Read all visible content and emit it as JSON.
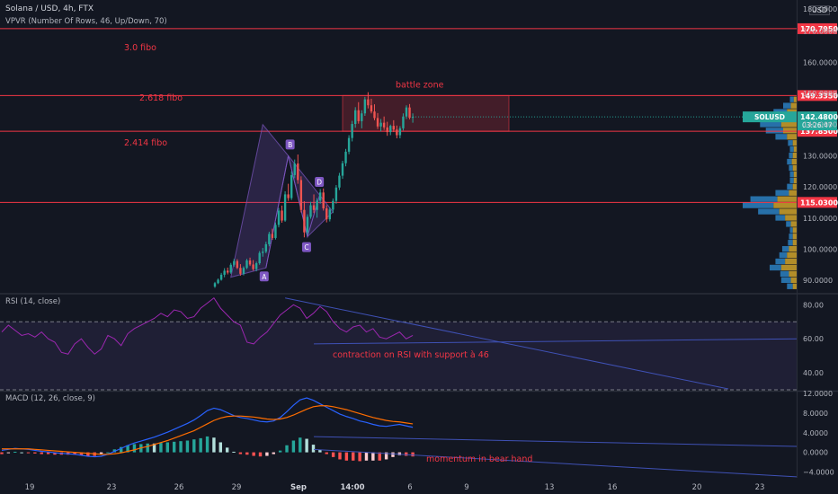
{
  "header": {
    "title": "Solana / USD, 4h, FTX",
    "indicator": "VPVR (Number Of Rows, 46, Up/Down, 70)",
    "currency_badge": "USD",
    "rsi_title": "RSI (14, close)",
    "macd_title": "MACD (12, 26, close, 9)"
  },
  "colors": {
    "background": "#131722",
    "up": "#26a69a",
    "down": "#ef5350",
    "level_line": "#f23645",
    "rsi_line": "#9c27b0",
    "macd_line": "#2962ff",
    "signal_line": "#ff6d00",
    "trendline": "#3f51b5",
    "vp_up": "#2a7ab8",
    "vp_down": "#c49a2a"
  },
  "chart_data": [
    {
      "type": "candlestick",
      "symbol": "SOLUSD",
      "ylim": [
        86,
        180
      ],
      "yticks": [
        90,
        100,
        110,
        120,
        130,
        140,
        150,
        160,
        170
      ],
      "ytick_labels": [
        "90.0000",
        "100.0000",
        "110.0000",
        "120.0000",
        "130.0000",
        "140.0000",
        "150.0000",
        "160.0000",
        "170.0000"
      ],
      "top_partial_label": "180.0000",
      "levels": [
        {
          "value": 170.795,
          "label": "170.7950",
          "text": "3.0 fibo"
        },
        {
          "value": 149.335,
          "label": "149.3350",
          "text": "2.618 fibo"
        },
        {
          "value": 137.85,
          "label": "137.8500",
          "text": "2.414 fibo"
        },
        {
          "value": 115.03,
          "label": "115.0300",
          "text": ""
        }
      ],
      "last_price": {
        "symbol": "SOLUSD",
        "value": 142.48,
        "label": "142.4800",
        "countdown": "03:26:47"
      },
      "annotations": {
        "zone_label": "battle zone",
        "zone_top": 149.335,
        "zone_bottom": 137.85
      },
      "pattern_points": [
        {
          "label": "A",
          "value": 94
        },
        {
          "label": "B",
          "value": 130
        },
        {
          "label": "C",
          "value": 104
        },
        {
          "label": "D",
          "value": 118
        }
      ],
      "candles": [
        [
          88,
          89.5,
          87.6,
          89.1
        ],
        [
          89.1,
          90.6,
          88.8,
          90.2
        ],
        [
          90.2,
          92.4,
          89.9,
          91.8
        ],
        [
          91.8,
          93.9,
          91.0,
          93.1
        ],
        [
          93.1,
          94.1,
          91.9,
          92.5
        ],
        [
          92.5,
          95.6,
          92.1,
          95.0
        ],
        [
          95.0,
          96.9,
          94.4,
          96.2
        ],
        [
          96.2,
          96.8,
          93.6,
          94.0
        ],
        [
          94.0,
          95.2,
          91.5,
          92.1
        ],
        [
          92.1,
          94.5,
          91.6,
          94.0
        ],
        [
          94.0,
          96.9,
          93.6,
          96.4
        ],
        [
          96.4,
          97.3,
          94.6,
          95.1
        ],
        [
          95.1,
          96.5,
          93.1,
          93.6
        ],
        [
          93.6,
          96.0,
          92.9,
          95.5
        ],
        [
          95.5,
          99.4,
          95.0,
          98.8
        ],
        [
          98.8,
          100.4,
          97.6,
          99.2
        ],
        [
          99.2,
          102.4,
          98.7,
          101.6
        ],
        [
          101.6,
          105.6,
          100.9,
          104.9
        ],
        [
          104.9,
          106.6,
          103.0,
          103.6
        ],
        [
          103.6,
          108.6,
          103.1,
          107.8
        ],
        [
          107.8,
          113.2,
          107.0,
          112.4
        ],
        [
          112.4,
          114.0,
          108.5,
          109.2
        ],
        [
          109.2,
          118.6,
          108.8,
          117.6
        ],
        [
          117.6,
          121.0,
          115.5,
          116.4
        ],
        [
          116.4,
          125.0,
          115.8,
          123.8
        ],
        [
          123.8,
          128.8,
          122.8,
          127.5
        ],
        [
          127.5,
          130.4,
          121.0,
          122.2
        ],
        [
          122.2,
          123.4,
          111.8,
          112.6
        ],
        [
          112.6,
          115.4,
          103.8,
          105.4
        ],
        [
          105.4,
          111.2,
          104.6,
          110.4
        ],
        [
          110.4,
          115.2,
          109.8,
          114.1
        ],
        [
          114.1,
          117.6,
          111.6,
          112.6
        ],
        [
          112.6,
          116.4,
          110.1,
          115.6
        ],
        [
          115.6,
          119.3,
          114.6,
          118.2
        ],
        [
          118.2,
          119.5,
          112.4,
          113.1
        ],
        [
          113.1,
          114.1,
          108.6,
          109.6
        ],
        [
          109.6,
          113.4,
          108.9,
          112.7
        ],
        [
          112.7,
          116.3,
          111.6,
          115.5
        ],
        [
          115.5,
          120.6,
          114.6,
          119.8
        ],
        [
          119.8,
          124.5,
          119.0,
          123.6
        ],
        [
          123.6,
          128.4,
          122.6,
          127.6
        ],
        [
          127.6,
          132.2,
          126.6,
          131.3
        ],
        [
          131.3,
          136.6,
          130.5,
          135.7
        ],
        [
          135.7,
          141.2,
          134.6,
          140.2
        ],
        [
          140.2,
          145.6,
          139.0,
          144.6
        ],
        [
          144.6,
          147.2,
          140.3,
          141.1
        ],
        [
          141.1,
          144.6,
          138.8,
          143.6
        ],
        [
          143.6,
          148.9,
          142.8,
          148.1
        ],
        [
          148.1,
          150.4,
          145.2,
          146.2
        ],
        [
          146.2,
          148.3,
          143.6,
          144.2
        ],
        [
          144.2,
          146.5,
          141.4,
          142.1
        ],
        [
          142.1,
          143.7,
          138.6,
          139.4
        ],
        [
          139.4,
          141.8,
          137.8,
          140.6
        ],
        [
          140.6,
          142.6,
          138.3,
          139.1
        ],
        [
          139.1,
          140.9,
          136.4,
          137.6
        ],
        [
          137.6,
          140.0,
          136.6,
          139.6
        ],
        [
          139.6,
          141.4,
          137.6,
          138.4
        ],
        [
          138.4,
          139.7,
          135.6,
          136.6
        ],
        [
          136.6,
          139.5,
          135.6,
          138.8
        ],
        [
          138.8,
          143.6,
          138.1,
          142.6
        ],
        [
          142.6,
          146.2,
          141.8,
          145.5
        ],
        [
          145.5,
          146.6,
          141.7,
          142.2
        ],
        [
          142.2,
          143.6,
          140.6,
          142.48
        ]
      ],
      "volume_profile": [
        {
          "price": 88,
          "up": 6,
          "down": 4
        },
        {
          "price": 90,
          "up": 10,
          "down": 6
        },
        {
          "price": 92,
          "up": 9,
          "down": 8
        },
        {
          "price": 94,
          "up": 12,
          "down": 16
        },
        {
          "price": 96,
          "up": 10,
          "down": 12
        },
        {
          "price": 98,
          "up": 8,
          "down": 10
        },
        {
          "price": 100,
          "up": 7,
          "down": 8
        },
        {
          "price": 102,
          "up": 5,
          "down": 4
        },
        {
          "price": 104,
          "up": 4,
          "down": 4
        },
        {
          "price": 106,
          "up": 3,
          "down": 4
        },
        {
          "price": 108,
          "up": 5,
          "down": 6
        },
        {
          "price": 110,
          "up": 10,
          "down": 12
        },
        {
          "price": 112,
          "up": 22,
          "down": 18
        },
        {
          "price": 114,
          "up": 32,
          "down": 24
        },
        {
          "price": 116,
          "up": 28,
          "down": 20
        },
        {
          "price": 118,
          "up": 14,
          "down": 8
        },
        {
          "price": 120,
          "up": 6,
          "down": 4
        },
        {
          "price": 122,
          "up": 4,
          "down": 3
        },
        {
          "price": 124,
          "up": 4,
          "down": 3
        },
        {
          "price": 126,
          "up": 4,
          "down": 4
        },
        {
          "price": 128,
          "up": 5,
          "down": 5
        },
        {
          "price": 130,
          "up": 4,
          "down": 4
        },
        {
          "price": 132,
          "up": 4,
          "down": 3
        },
        {
          "price": 134,
          "up": 5,
          "down": 4
        },
        {
          "price": 136,
          "up": 12,
          "down": 10
        },
        {
          "price": 138,
          "up": 18,
          "down": 14
        },
        {
          "price": 140,
          "up": 22,
          "down": 16
        },
        {
          "price": 142,
          "up": 20,
          "down": 14
        },
        {
          "price": 144,
          "up": 14,
          "down": 10
        },
        {
          "price": 146,
          "up": 8,
          "down": 6
        },
        {
          "price": 148,
          "up": 4,
          "down": 3
        }
      ]
    },
    {
      "type": "line",
      "name": "RSI",
      "ylim": [
        30,
        86
      ],
      "yticks": [
        40,
        60,
        80
      ],
      "ytick_labels": [
        "40.00",
        "60.00",
        "80.00"
      ],
      "bands": [
        70,
        30
      ],
      "values": [
        64,
        68,
        65,
        62,
        63,
        61,
        64,
        60,
        58,
        52,
        51,
        57,
        60,
        55,
        51,
        54,
        62,
        60,
        56,
        63,
        66,
        68,
        70,
        72,
        75,
        73,
        77,
        76,
        72,
        73,
        78,
        81,
        84,
        78,
        74,
        70,
        68,
        58,
        57,
        61,
        64,
        69,
        74,
        77,
        80,
        78,
        72,
        75,
        79,
        76,
        70,
        66,
        64,
        67,
        68,
        64,
        66,
        61,
        60,
        62,
        64,
        60,
        62
      ],
      "annotation": "contraction on RSI with support à 46"
    },
    {
      "type": "line",
      "name": "MACD",
      "ylim": [
        -5.2,
        12.2
      ],
      "yticks": [
        -4,
        0,
        4,
        8,
        12
      ],
      "ytick_labels": [
        "−4.0000",
        "0.0000",
        "4.0000",
        "8.0000",
        "12.0000"
      ],
      "macd": [
        0.4,
        0.6,
        0.8,
        0.7,
        0.6,
        0.4,
        0.2,
        0.1,
        -0.1,
        -0.2,
        -0.3,
        -0.4,
        -0.6,
        -0.8,
        -0.9,
        -0.8,
        -0.4,
        0.2,
        0.8,
        1.4,
        1.9,
        2.3,
        2.7,
        3.1,
        3.6,
        4.1,
        4.7,
        5.3,
        5.9,
        6.6,
        7.5,
        8.5,
        9.0,
        8.7,
        8.1,
        7.5,
        7.1,
        6.9,
        6.6,
        6.3,
        6.2,
        6.4,
        7.1,
        8.3,
        9.6,
        10.7,
        11.1,
        10.6,
        9.9,
        9.2,
        8.5,
        7.8,
        7.3,
        6.9,
        6.4,
        6.1,
        5.7,
        5.4,
        5.3,
        5.5,
        5.7,
        5.4,
        5.1
      ],
      "signal": [
        0.7,
        0.7,
        0.7,
        0.7,
        0.7,
        0.6,
        0.5,
        0.4,
        0.3,
        0.2,
        0.1,
        0.0,
        -0.1,
        -0.2,
        -0.3,
        -0.4,
        -0.4,
        -0.3,
        -0.1,
        0.2,
        0.5,
        0.9,
        1.2,
        1.6,
        2.0,
        2.4,
        2.9,
        3.4,
        3.9,
        4.4,
        5.1,
        5.8,
        6.5,
        7.0,
        7.3,
        7.4,
        7.4,
        7.3,
        7.2,
        7.0,
        6.8,
        6.7,
        6.8,
        7.1,
        7.6,
        8.2,
        8.8,
        9.3,
        9.5,
        9.5,
        9.3,
        9.0,
        8.7,
        8.3,
        7.9,
        7.5,
        7.1,
        6.8,
        6.5,
        6.3,
        6.2,
        6.0,
        5.8
      ],
      "annotation": "momentum in bear hand"
    }
  ],
  "x_axis": {
    "ticks": [
      {
        "label": "19",
        "bold": false
      },
      {
        "label": "23",
        "bold": false
      },
      {
        "label": "26",
        "bold": false
      },
      {
        "label": "29",
        "bold": false
      },
      {
        "label": "Sep",
        "bold": true
      },
      {
        "label": "14:00",
        "bold": true
      },
      {
        "label": "6",
        "bold": false
      },
      {
        "label": "9",
        "bold": false
      },
      {
        "label": "13",
        "bold": false
      },
      {
        "label": "16",
        "bold": false
      },
      {
        "label": "20",
        "bold": false
      },
      {
        "label": "23",
        "bold": false
      }
    ]
  }
}
